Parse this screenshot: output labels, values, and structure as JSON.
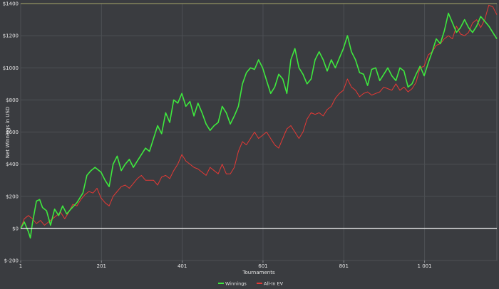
{
  "chart_data": {
    "type": "line",
    "xlabel": "Tournaments",
    "ylabel": "Net Winnings in USD",
    "xlim": [
      1,
      1180
    ],
    "ylim": [
      -200,
      1400
    ],
    "x_ticks": [
      1,
      201,
      401,
      601,
      801,
      1001
    ],
    "x_tick_labels": [
      "1",
      "201",
      "401",
      "601",
      "801",
      "1 001"
    ],
    "y_ticks": [
      -200,
      0,
      200,
      400,
      600,
      800,
      1000,
      1200,
      1400
    ],
    "y_tick_labels": [
      "$-200",
      "$0",
      "$200",
      "$400",
      "$600",
      "$800",
      "$1000",
      "$1200",
      "$1400"
    ],
    "grid": true,
    "legend": "bottom-center",
    "series": [
      {
        "name": "Winnings",
        "color": "#3ee83e",
        "x": [
          1,
          10,
          20,
          25,
          30,
          40,
          48,
          55,
          65,
          75,
          85,
          95,
          105,
          115,
          125,
          140,
          155,
          165,
          175,
          185,
          200,
          210,
          220,
          230,
          240,
          250,
          260,
          270,
          280,
          290,
          300,
          310,
          320,
          330,
          340,
          350,
          360,
          370,
          380,
          390,
          400,
          410,
          420,
          430,
          440,
          450,
          460,
          470,
          480,
          490,
          500,
          510,
          520,
          530,
          540,
          550,
          560,
          570,
          580,
          590,
          600,
          610,
          620,
          630,
          640,
          650,
          660,
          670,
          680,
          690,
          700,
          710,
          720,
          730,
          740,
          750,
          760,
          770,
          780,
          790,
          800,
          810,
          820,
          830,
          840,
          850,
          860,
          870,
          880,
          890,
          900,
          910,
          920,
          930,
          940,
          950,
          960,
          970,
          980,
          990,
          1000,
          1010,
          1020,
          1030,
          1040,
          1050,
          1060,
          1070,
          1080,
          1090,
          1100,
          1110,
          1120,
          1130,
          1140,
          1150,
          1160,
          1170,
          1180
        ],
        "y": [
          0,
          40,
          -20,
          -60,
          30,
          170,
          180,
          130,
          110,
          20,
          120,
          80,
          140,
          90,
          120,
          160,
          220,
          330,
          360,
          380,
          350,
          300,
          260,
          400,
          450,
          360,
          400,
          430,
          380,
          420,
          460,
          500,
          480,
          560,
          640,
          590,
          720,
          660,
          800,
          780,
          840,
          760,
          790,
          700,
          780,
          720,
          650,
          610,
          640,
          660,
          760,
          720,
          650,
          700,
          760,
          900,
          970,
          1000,
          990,
          1050,
          1000,
          920,
          840,
          880,
          960,
          930,
          840,
          1050,
          1120,
          1000,
          960,
          900,
          930,
          1050,
          1100,
          1050,
          980,
          1050,
          1000,
          1060,
          1120,
          1200,
          1100,
          1050,
          970,
          960,
          890,
          990,
          1000,
          920,
          960,
          1000,
          950,
          920,
          1000,
          980,
          880,
          900,
          960,
          1010,
          950,
          1030,
          1100,
          1180,
          1150,
          1230,
          1340,
          1280,
          1220,
          1250,
          1300,
          1250,
          1220,
          1260,
          1320,
          1290,
          1260,
          1220,
          1180
        ]
      },
      {
        "name": "All-In EV",
        "color": "#e53935",
        "x": [
          1,
          10,
          20,
          30,
          40,
          50,
          60,
          70,
          80,
          90,
          100,
          110,
          120,
          130,
          140,
          150,
          160,
          170,
          180,
          190,
          200,
          210,
          220,
          230,
          240,
          250,
          260,
          270,
          280,
          290,
          300,
          310,
          320,
          330,
          340,
          350,
          360,
          370,
          380,
          390,
          400,
          410,
          420,
          430,
          440,
          450,
          460,
          470,
          480,
          490,
          500,
          510,
          520,
          530,
          540,
          550,
          560,
          570,
          580,
          590,
          600,
          610,
          620,
          630,
          640,
          650,
          660,
          670,
          680,
          690,
          700,
          710,
          720,
          730,
          740,
          750,
          760,
          770,
          780,
          790,
          800,
          810,
          820,
          830,
          840,
          850,
          860,
          870,
          880,
          890,
          900,
          910,
          920,
          930,
          940,
          950,
          960,
          970,
          980,
          990,
          1000,
          1010,
          1020,
          1030,
          1040,
          1050,
          1060,
          1070,
          1080,
          1090,
          1100,
          1110,
          1120,
          1130,
          1140,
          1150,
          1160,
          1170,
          1180
        ],
        "y": [
          0,
          60,
          80,
          60,
          30,
          50,
          20,
          40,
          60,
          80,
          100,
          60,
          100,
          150,
          140,
          180,
          210,
          230,
          220,
          250,
          190,
          160,
          140,
          200,
          230,
          260,
          270,
          250,
          280,
          310,
          330,
          300,
          300,
          300,
          270,
          320,
          330,
          310,
          360,
          400,
          460,
          420,
          400,
          380,
          370,
          350,
          330,
          380,
          360,
          340,
          400,
          340,
          340,
          380,
          480,
          540,
          520,
          560,
          600,
          560,
          580,
          600,
          560,
          520,
          500,
          560,
          620,
          640,
          600,
          560,
          600,
          680,
          720,
          710,
          720,
          700,
          740,
          760,
          810,
          840,
          860,
          930,
          880,
          860,
          820,
          840,
          850,
          830,
          840,
          850,
          880,
          870,
          860,
          900,
          860,
          880,
          850,
          870,
          910,
          1000,
          1010,
          1080,
          1100,
          1140,
          1150,
          1180,
          1200,
          1180,
          1260,
          1210,
          1200,
          1220,
          1280,
          1300,
          1250,
          1300,
          1390,
          1380,
          1330
        ]
      }
    ]
  }
}
